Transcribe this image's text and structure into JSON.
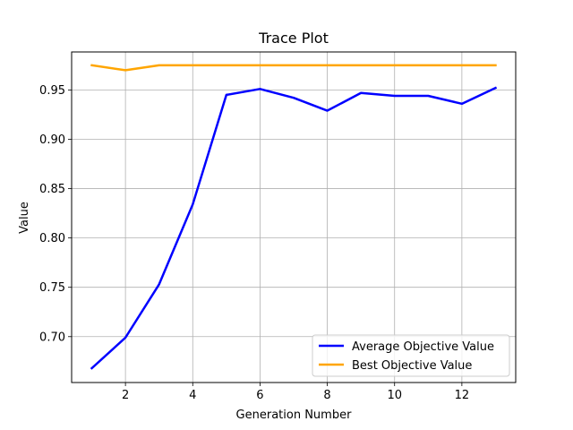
{
  "chart_data": {
    "type": "line",
    "title": "Trace Plot",
    "xlabel": "Generation Number",
    "ylabel": "Value",
    "xlim": [
      0.4,
      13.6
    ],
    "ylim": [
      0.6535,
      0.9885
    ],
    "x_ticks": [
      2,
      4,
      6,
      8,
      10,
      12
    ],
    "y_ticks": [
      0.7,
      0.75,
      0.8,
      0.85,
      0.9,
      0.95
    ],
    "y_tick_labels": [
      "0.70",
      "0.75",
      "0.80",
      "0.85",
      "0.90",
      "0.95"
    ],
    "grid": true,
    "legend_position": "lower-right",
    "x": [
      1,
      2,
      3,
      4,
      5,
      6,
      7,
      8,
      9,
      10,
      11,
      12,
      13
    ],
    "series": [
      {
        "name": "Average Objective Value",
        "color": "#0000ff",
        "values": [
          0.668,
          0.699,
          0.753,
          0.834,
          0.945,
          0.951,
          0.942,
          0.929,
          0.947,
          0.944,
          0.944,
          0.936,
          0.952
        ]
      },
      {
        "name": "Best Objective Value",
        "color": "#ffa500",
        "values": [
          0.975,
          0.97,
          0.975,
          0.975,
          0.975,
          0.975,
          0.975,
          0.975,
          0.975,
          0.975,
          0.975,
          0.975,
          0.975
        ]
      }
    ]
  }
}
